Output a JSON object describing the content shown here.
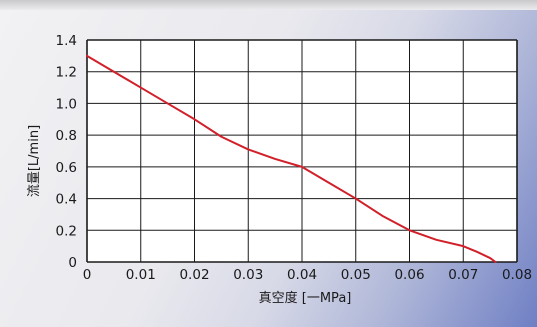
{
  "chart_data": {
    "type": "line",
    "xlabel": "真空度 [一MPa]",
    "ylabel": "流量[L/min]",
    "xlim": [
      0,
      0.08
    ],
    "ylim": [
      0,
      1.4
    ],
    "grid": true,
    "x_ticks": [
      "0",
      "0.01",
      "0.02",
      "0.03",
      "0.04",
      "0.05",
      "0.06",
      "0.07",
      "0.08"
    ],
    "y_ticks": [
      "0",
      "0.2",
      "0.4",
      "0.6",
      "0.8",
      "1.0",
      "1.2",
      "1.4"
    ],
    "series": [
      {
        "color": "#d2202a",
        "x": [
          0,
          0.005,
          0.01,
          0.015,
          0.02,
          0.025,
          0.03,
          0.035,
          0.04,
          0.045,
          0.05,
          0.055,
          0.06,
          0.065,
          0.07,
          0.0725,
          0.075,
          0.076
        ],
        "y": [
          1.3,
          1.2,
          1.1,
          1.0,
          0.9,
          0.79,
          0.71,
          0.65,
          0.6,
          0.5,
          0.4,
          0.29,
          0.2,
          0.14,
          0.1,
          0.065,
          0.025,
          0.0
        ]
      }
    ]
  }
}
